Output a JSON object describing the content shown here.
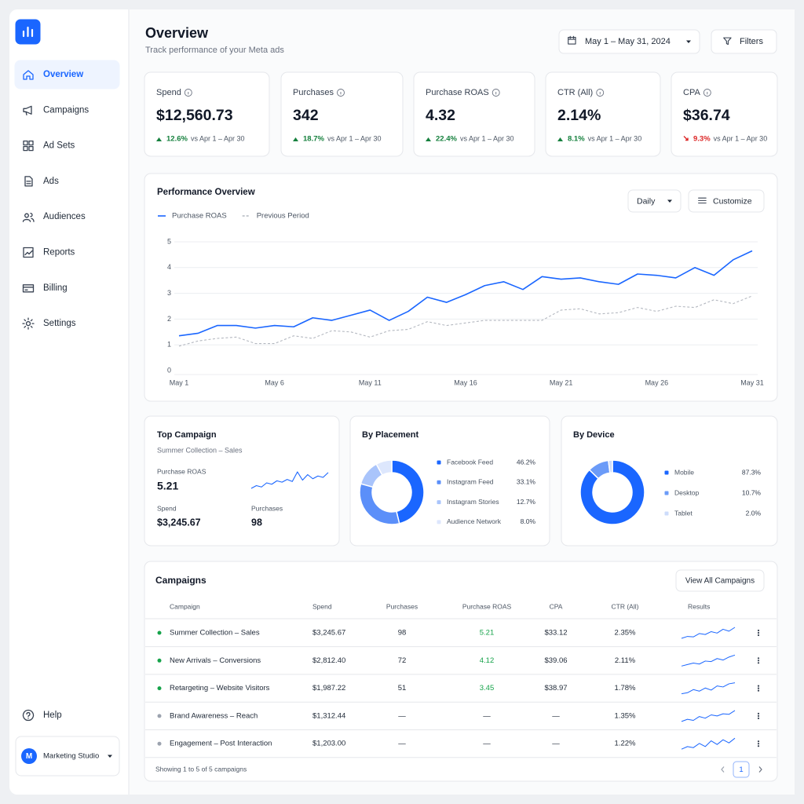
{
  "sidebar": {
    "nav": [
      {
        "label": "Overview",
        "active": true
      },
      {
        "label": "Campaigns"
      },
      {
        "label": "Ad Sets"
      },
      {
        "label": "Ads"
      },
      {
        "label": "Audiences"
      },
      {
        "label": "Reports"
      },
      {
        "label": "Billing"
      },
      {
        "label": "Settings"
      }
    ],
    "help": "Help",
    "workspace": {
      "initial": "M",
      "name": "Marketing Studio"
    }
  },
  "header": {
    "title": "Overview",
    "subtitle": "Track performance of your Meta ads",
    "date_range": "May 1 – May 31, 2024",
    "filters": "Filters"
  },
  "kpis": [
    {
      "label": "Spend",
      "value": "$12,560.73",
      "change": "12.6%",
      "comparison": "vs Apr 1 – Apr 30",
      "direction": "up"
    },
    {
      "label": "Purchases",
      "value": "342",
      "change": "18.7%",
      "comparison": "vs Apr 1 – Apr 30",
      "direction": "up"
    },
    {
      "label": "Purchase ROAS",
      "value": "4.32",
      "change": "22.4%",
      "comparison": "vs Apr 1 – Apr 30",
      "direction": "up"
    },
    {
      "label": "CTR (All)",
      "value": "2.14%",
      "change": "8.1%",
      "comparison": "vs Apr 1 – Apr 30",
      "direction": "up"
    },
    {
      "label": "CPA",
      "value": "$36.74",
      "change": "9.3%",
      "comparison": "vs Apr 1 – Apr 30",
      "direction": "down"
    }
  ],
  "performance_controls": {
    "interval": "Daily",
    "customize": "Customize"
  },
  "chart_data": [
    {
      "type": "line",
      "title": "Performance Overview",
      "categories": [
        "May 1",
        null,
        null,
        null,
        null,
        "May 6",
        null,
        null,
        null,
        null,
        "May 11",
        null,
        null,
        null,
        null,
        "May 16",
        null,
        null,
        null,
        null,
        "May 21",
        null,
        null,
        null,
        null,
        "May 26",
        null,
        null,
        null,
        null,
        "May 31"
      ],
      "series": [
        {
          "name": "Purchase ROAS",
          "color": "#1a66ff",
          "dashed": false,
          "values": [
            1.35,
            1.45,
            1.75,
            1.75,
            1.65,
            1.75,
            1.7,
            2.05,
            1.95,
            2.15,
            2.35,
            1.95,
            2.3,
            2.85,
            2.65,
            2.95,
            3.3,
            3.45,
            3.15,
            3.65,
            3.55,
            3.6,
            3.45,
            3.35,
            3.75,
            3.7,
            3.6,
            4.0,
            3.7,
            4.3,
            4.65
          ]
        },
        {
          "name": "Previous Period",
          "color": "#b4b8c0",
          "dashed": true,
          "values": [
            0.95,
            1.15,
            1.25,
            1.3,
            1.05,
            1.05,
            1.35,
            1.25,
            1.55,
            1.5,
            1.3,
            1.55,
            1.6,
            1.9,
            1.75,
            1.85,
            1.95,
            1.95,
            1.95,
            1.95,
            2.35,
            2.4,
            2.2,
            2.25,
            2.45,
            2.3,
            2.5,
            2.45,
            2.75,
            2.6,
            2.9
          ]
        }
      ],
      "ylim": [
        0,
        5
      ],
      "yticks": [
        0,
        1,
        2,
        3,
        4,
        5
      ],
      "grid": true,
      "legend": "top-left"
    },
    {
      "type": "donut",
      "title": "By Placement",
      "categories": [
        "Facebook Feed",
        "Instagram Feed",
        "Instagram Stories",
        "Audience Network"
      ],
      "values": [
        46.2,
        33.1,
        12.7,
        8.0
      ],
      "value_labels": [
        "46.2%",
        "33.1%",
        "12.7%",
        "8.0%"
      ],
      "colors": [
        "#1a66ff",
        "#5b8ff9",
        "#a9c4fb",
        "#dde7fd"
      ]
    },
    {
      "type": "donut",
      "title": "By Device",
      "categories": [
        "Mobile",
        "Desktop",
        "Tablet"
      ],
      "values": [
        87.3,
        10.7,
        2.0
      ],
      "value_labels": [
        "87.3%",
        "10.7%",
        "2.0%"
      ],
      "colors": [
        "#1a66ff",
        "#6b9bf8",
        "#cddcfb"
      ]
    }
  ],
  "top_campaign": {
    "title": "Top Campaign",
    "name": "Summer Collection – Sales",
    "roas_label": "Purchase ROAS",
    "roas": "5.21",
    "spend_label": "Spend",
    "spend": "$3,245.67",
    "purchases_label": "Purchases",
    "purchases": "98",
    "sparkline": [
      3,
      3.4,
      3.2,
      3.8,
      3.6,
      4.1,
      3.9,
      4.3,
      4.0,
      5.4,
      4.2,
      5.0,
      4.4,
      4.8,
      4.6,
      5.3
    ]
  },
  "campaigns": {
    "title": "Campaigns",
    "view_all": "View All Campaigns",
    "columns": [
      "Campaign",
      "Spend",
      "Purchases",
      "Purchase ROAS",
      "CPA",
      "CTR (All)",
      "Results"
    ],
    "rows": [
      {
        "status": "active",
        "name": "Summer Collection – Sales",
        "spend": "$3,245.67",
        "purchases": "98",
        "roas": "5.21",
        "cpa": "$33.12",
        "ctr": "2.35%",
        "results": [
          2,
          2.4,
          2.3,
          3,
          2.8,
          3.4,
          3.1,
          3.9,
          3.5,
          4.3
        ]
      },
      {
        "status": "active",
        "name": "New Arrivals – Conversions",
        "spend": "$2,812.40",
        "purchases": "72",
        "roas": "4.12",
        "cpa": "$39.06",
        "ctr": "2.11%",
        "results": [
          2,
          2.3,
          2.6,
          2.4,
          3,
          2.9,
          3.5,
          3.2,
          3.8,
          4.2
        ]
      },
      {
        "status": "active",
        "name": "Retargeting – Website Visitors",
        "spend": "$1,987.22",
        "purchases": "51",
        "roas": "3.45",
        "cpa": "$38.97",
        "ctr": "1.78%",
        "results": [
          2,
          2.2,
          2.8,
          2.5,
          3.1,
          2.7,
          3.5,
          3.3,
          3.9,
          4.1
        ]
      },
      {
        "status": "paused",
        "name": "Brand Awareness – Reach",
        "spend": "$1,312.44",
        "purchases": "—",
        "roas": "—",
        "cpa": "—",
        "ctr": "1.35%",
        "results": [
          2,
          2.4,
          2.2,
          2.9,
          2.6,
          3.2,
          3.0,
          3.4,
          3.3,
          4.0
        ]
      },
      {
        "status": "paused",
        "name": "Engagement – Post Interaction",
        "spend": "$1,203.00",
        "purchases": "—",
        "roas": "—",
        "cpa": "—",
        "ctr": "1.22%",
        "results": [
          2,
          2.5,
          2.3,
          3.1,
          2.5,
          3.6,
          2.9,
          3.8,
          3.2,
          4.1
        ]
      }
    ],
    "footer": "Showing 1 to 5 of 5 campaigns",
    "page": "1"
  }
}
